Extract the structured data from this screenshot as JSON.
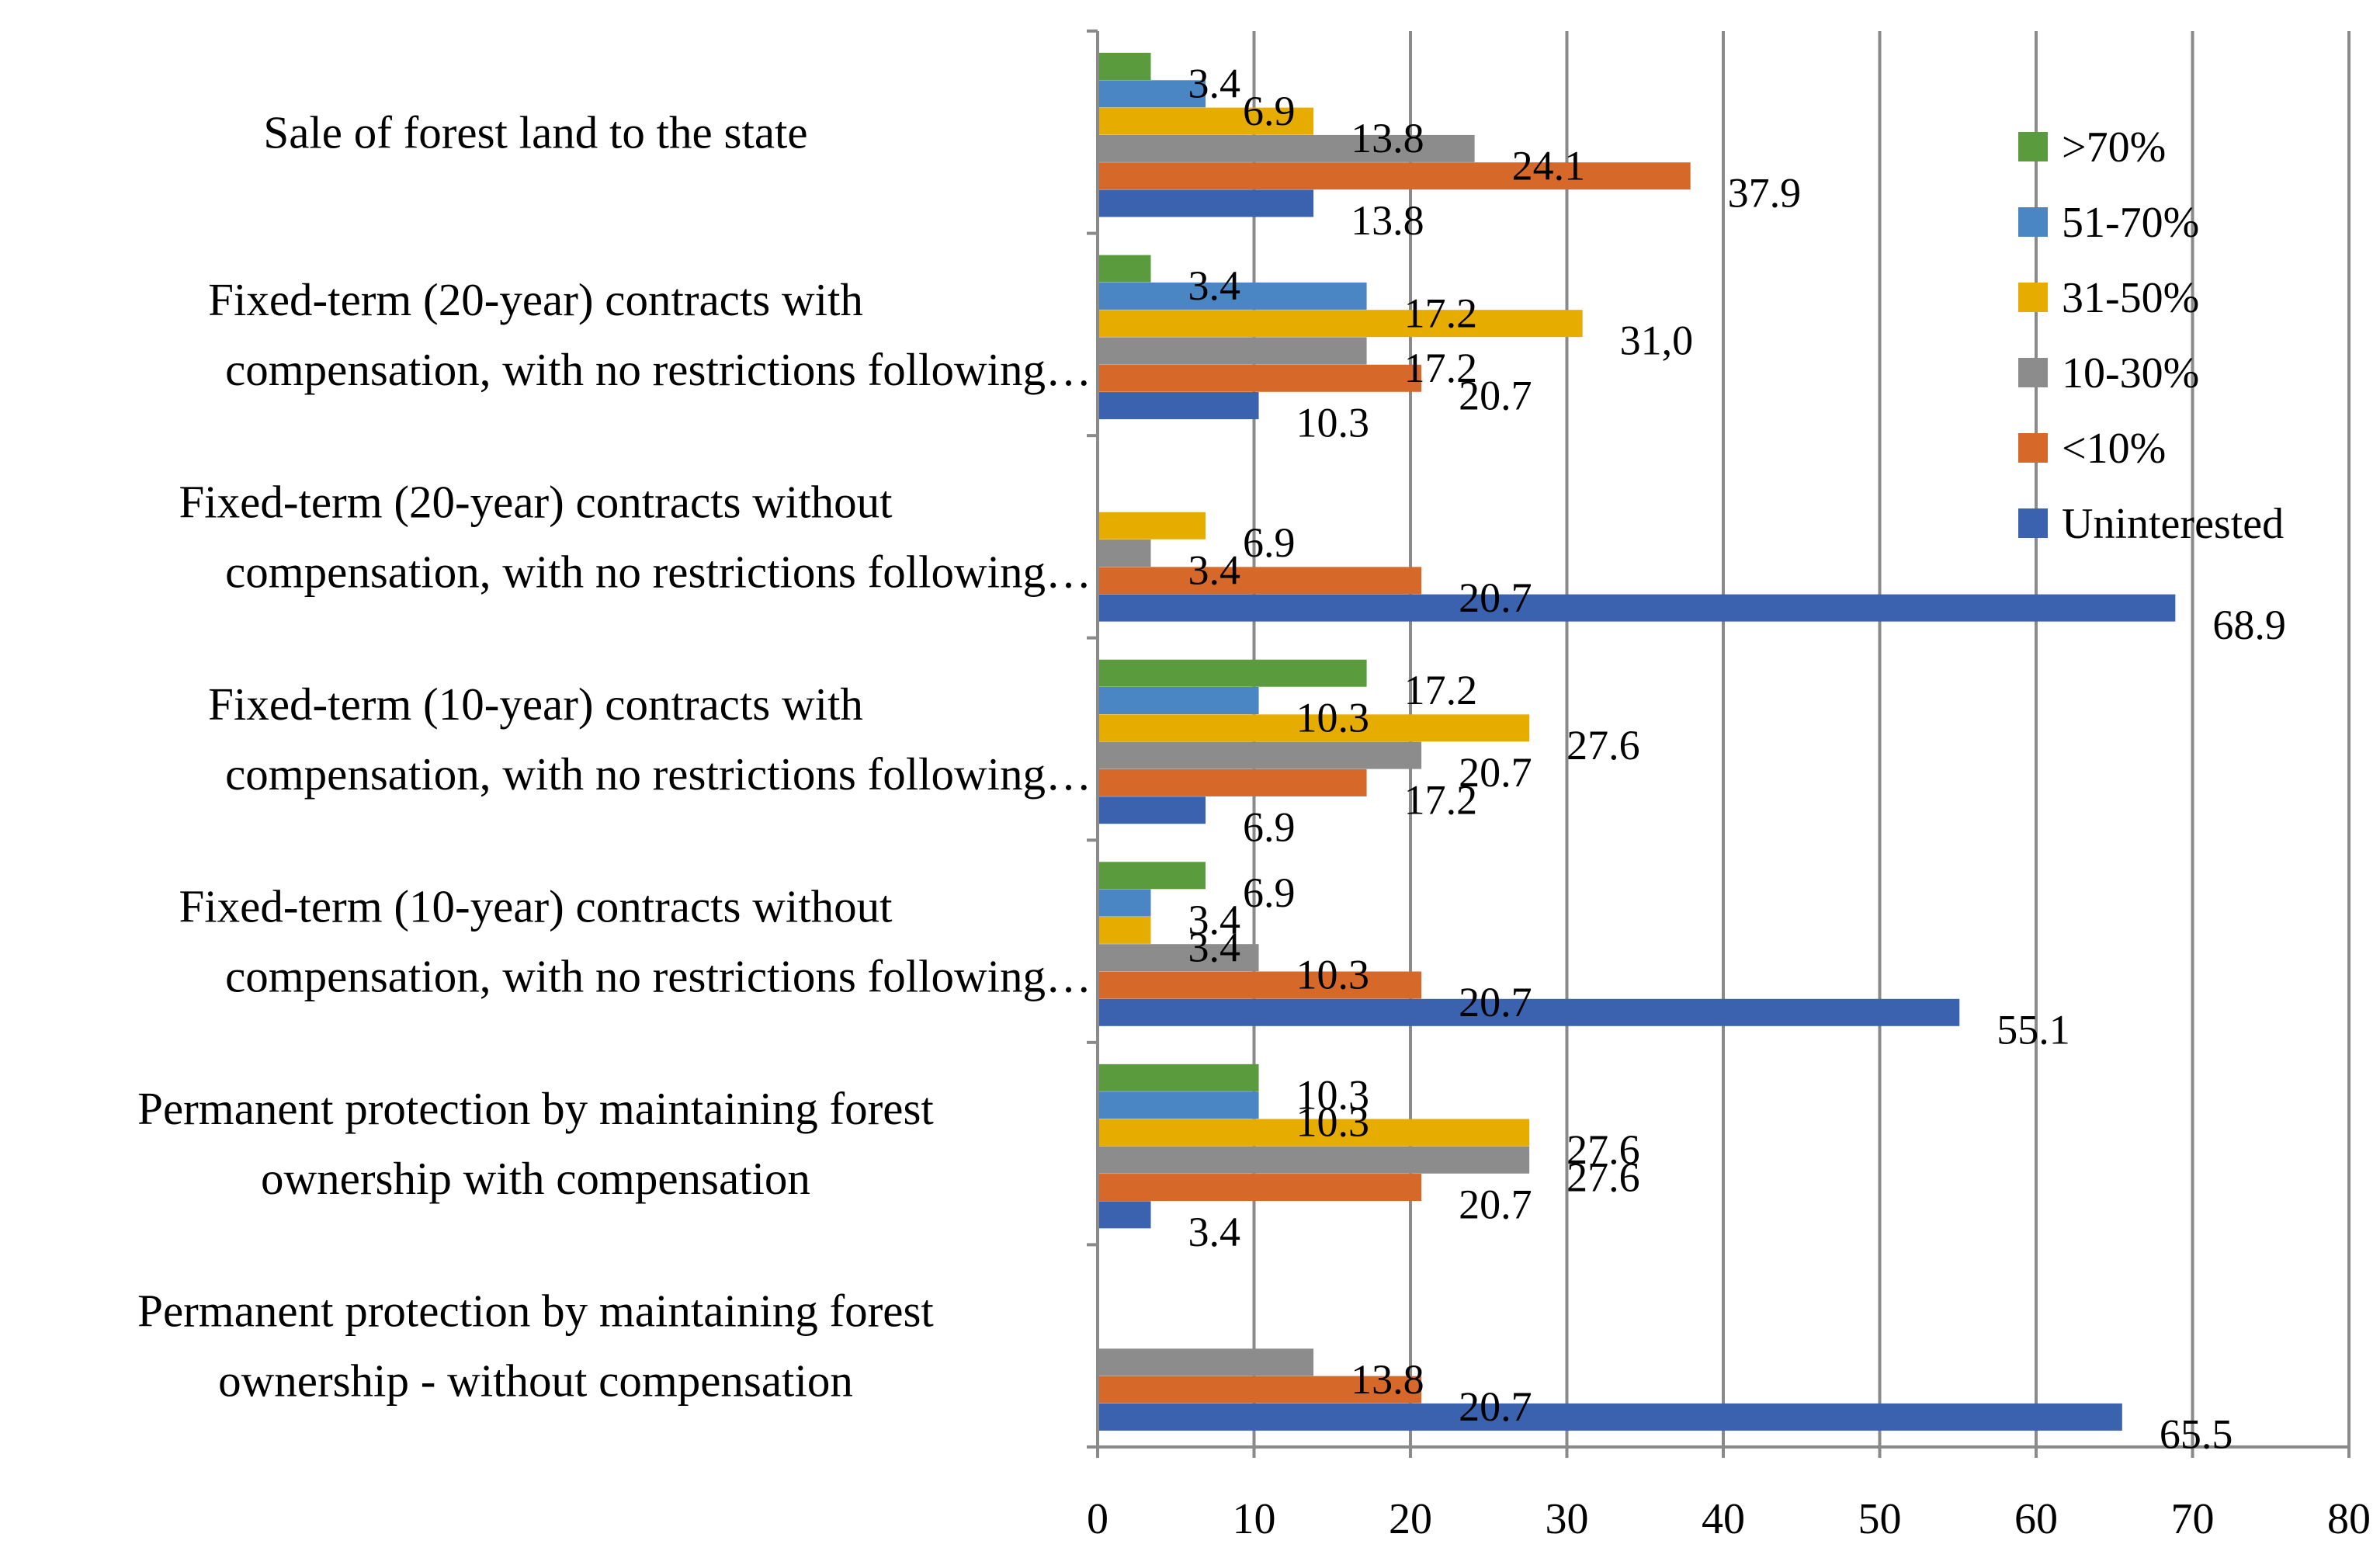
{
  "chart_data": {
    "type": "bar",
    "orientation": "horizontal",
    "title": "",
    "xlabel": "",
    "ylabel": "",
    "xlim": [
      0,
      80
    ],
    "x_ticks": [
      "0",
      "10",
      "20",
      "30",
      "40",
      "50",
      "60",
      "70",
      "80"
    ],
    "grid": true,
    "legend_position": "top-right",
    "categories": [
      [
        "Sale of forest land to the state"
      ],
      [
        "Fixed-term (20-year) contracts with",
        "compensation, with no restrictions following…"
      ],
      [
        "Fixed-term (20-year) contracts without",
        "compensation, with no restrictions following…"
      ],
      [
        "Fixed-term (10-year) contracts with",
        "compensation, with no restrictions following…"
      ],
      [
        "Fixed-term (10-year) contracts without",
        "compensation, with no restrictions following…"
      ],
      [
        "Permanent protection by maintaining forest",
        "ownership with compensation"
      ],
      [
        "Permanent protection by maintaining forest",
        "ownership - without compensation"
      ]
    ],
    "series": [
      {
        "name": ">70%",
        "color": "#5A9B3E",
        "values": [
          3.4,
          3.4,
          null,
          17.2,
          6.9,
          10.3,
          null
        ],
        "labels": [
          "3.4",
          "3.4",
          null,
          "17.2",
          "6.9",
          "10.3",
          null
        ]
      },
      {
        "name": "51-70%",
        "color": "#4A86C3",
        "values": [
          6.9,
          17.2,
          null,
          10.3,
          3.4,
          10.3,
          null
        ],
        "labels": [
          "6.9",
          "17.2",
          null,
          "10.3",
          "3.4",
          "10.3",
          null
        ]
      },
      {
        "name": "31-50%",
        "color": "#E6AD00",
        "values": [
          13.8,
          31.0,
          6.9,
          27.6,
          3.4,
          27.6,
          null
        ],
        "labels": [
          "13.8",
          "31,0",
          "6.9",
          "27.6",
          "3.4",
          "27.6",
          null
        ]
      },
      {
        "name": "10-30%",
        "color": "#8C8C8C",
        "values": [
          24.1,
          17.2,
          3.4,
          20.7,
          10.3,
          27.6,
          13.8
        ],
        "labels": [
          "24.1",
          "17.2",
          "3.4",
          "20.7",
          "10.3",
          "27.6",
          "13.8"
        ]
      },
      {
        "name": "<10%",
        "color": "#D6692A",
        "values": [
          37.9,
          20.7,
          20.7,
          17.2,
          20.7,
          20.7,
          20.7
        ],
        "labels": [
          "37.9",
          "20.7",
          "20.7",
          "17.2",
          "20.7",
          "20.7",
          "20.7"
        ]
      },
      {
        "name": "Uninterested",
        "color": "#3A62AF",
        "values": [
          13.8,
          10.3,
          68.9,
          6.9,
          55.1,
          3.4,
          65.5
        ],
        "labels": [
          "13.8",
          "10.3",
          "68.9",
          "6.9",
          "55.1",
          "3.4",
          "65.5"
        ]
      }
    ]
  }
}
